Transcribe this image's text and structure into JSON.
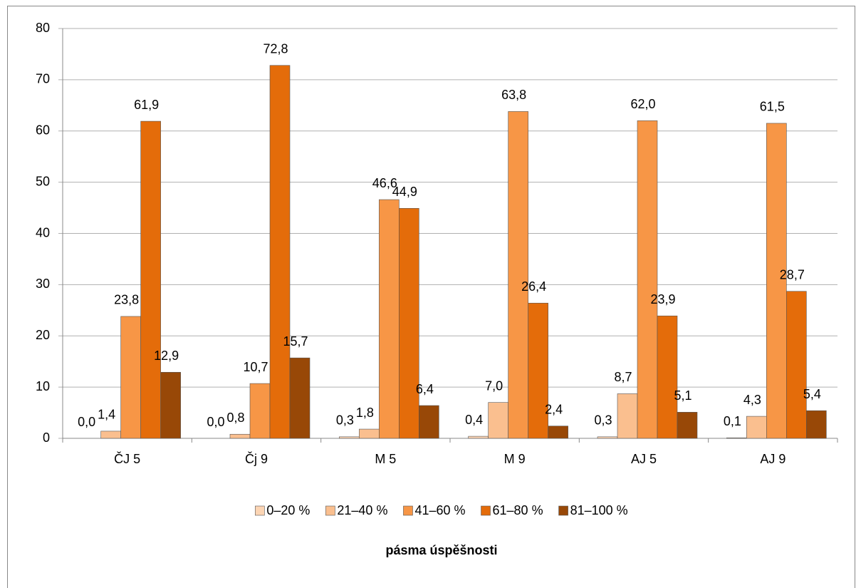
{
  "chart_data": {
    "type": "bar",
    "categories": [
      "ČJ 5",
      "Čj 9",
      "M 5",
      "M 9",
      "AJ 5",
      "AJ 9"
    ],
    "series": [
      {
        "name": "0–20 %",
        "color": "#fcd5b4",
        "values": [
          0.0,
          0.0,
          0.3,
          0.4,
          0.3,
          0.1
        ],
        "value_labels": [
          "0,0",
          "0,0",
          "0,3",
          "0,4",
          "0,3",
          "0,1"
        ]
      },
      {
        "name": "21–40 %",
        "color": "#fabf8f",
        "values": [
          1.4,
          0.8,
          1.8,
          7.0,
          8.7,
          4.3
        ],
        "value_labels": [
          "1,4",
          "0,8",
          "1,8",
          "7,0",
          "8,7",
          "4,3"
        ]
      },
      {
        "name": "41–60 %",
        "color": "#f79646",
        "values": [
          23.8,
          10.7,
          46.6,
          63.8,
          62.0,
          61.5
        ],
        "value_labels": [
          "23,8",
          "10,7",
          "46,6",
          "63,8",
          "62,0",
          "61,5"
        ]
      },
      {
        "name": "61–80 %",
        "color": "#e46c0a",
        "values": [
          61.9,
          72.8,
          44.9,
          26.4,
          23.9,
          28.7
        ],
        "value_labels": [
          "61,9",
          "72,8",
          "44,9",
          "26,4",
          "23,9",
          "28,7"
        ]
      },
      {
        "name": "81–100 %",
        "color": "#984807",
        "values": [
          12.9,
          15.7,
          6.4,
          2.4,
          5.1,
          5.4
        ],
        "value_labels": [
          "12,9",
          "15,7",
          "6,4",
          "2,4",
          "5,1",
          "5,4"
        ]
      }
    ],
    "x_label": "pásma úspěšnosti",
    "ylim": [
      0,
      80
    ],
    "yticks": [
      0,
      10,
      20,
      30,
      40,
      50,
      60,
      70,
      80
    ],
    "grid": true,
    "legend": "bottom"
  }
}
